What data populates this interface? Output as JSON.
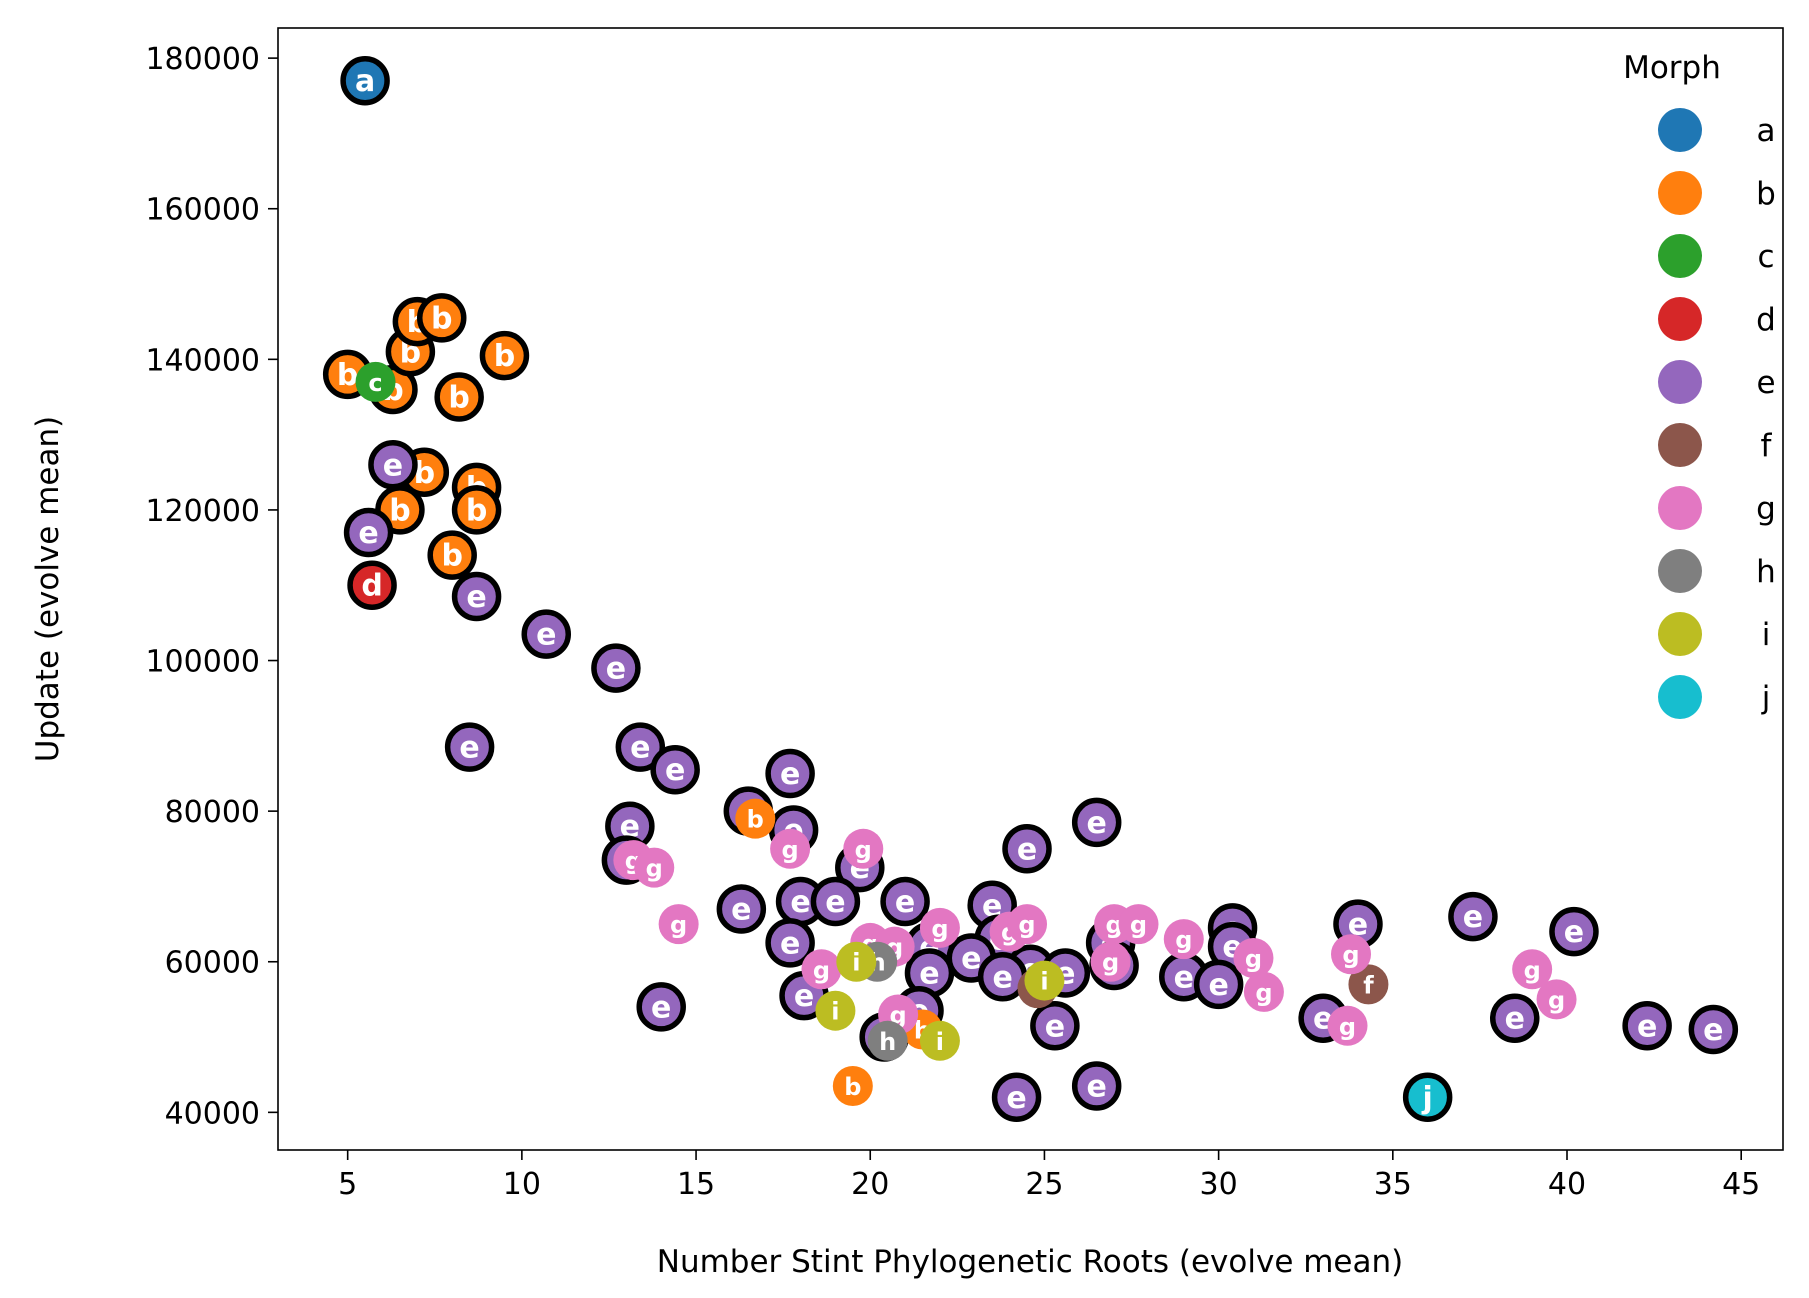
{
  "chart_data": {
    "type": "scatter",
    "title": "",
    "xlabel": "Number Stint Phylogenetic Roots (evolve mean)",
    "ylabel": "Update (evolve mean)",
    "xlim": [
      3,
      46.2
    ],
    "ylim": [
      35000,
      184000
    ],
    "xticks": [
      5,
      10,
      15,
      20,
      25,
      30,
      35,
      40,
      45
    ],
    "yticks": [
      40000,
      60000,
      80000,
      100000,
      120000,
      140000,
      160000,
      180000
    ],
    "grid": false,
    "legend": {
      "title": "Morph",
      "position": "top-right",
      "entries": [
        {
          "label": "a",
          "color": "#1f77b4"
        },
        {
          "label": "b",
          "color": "#ff7f0e"
        },
        {
          "label": "c",
          "color": "#2ca02c"
        },
        {
          "label": "d",
          "color": "#d62728"
        },
        {
          "label": "e",
          "color": "#9467bd"
        },
        {
          "label": "f",
          "color": "#8c564b"
        },
        {
          "label": "g",
          "color": "#e377c2"
        },
        {
          "label": "h",
          "color": "#7f7f7f"
        },
        {
          "label": "i",
          "color": "#bcbd22"
        },
        {
          "label": "j",
          "color": "#17becf"
        }
      ]
    },
    "series": [
      {
        "name": "a",
        "color": "#1f77b4",
        "points": [
          {
            "x": 5.5,
            "y": 177000,
            "o": true
          }
        ]
      },
      {
        "name": "b",
        "color": "#ff7f0e",
        "points": [
          {
            "x": 5.0,
            "y": 138000,
            "o": true
          },
          {
            "x": 6.3,
            "y": 136000,
            "o": true
          },
          {
            "x": 6.8,
            "y": 141000,
            "o": true
          },
          {
            "x": 7.0,
            "y": 145000,
            "o": true
          },
          {
            "x": 7.7,
            "y": 145500,
            "o": true
          },
          {
            "x": 9.5,
            "y": 140500,
            "o": true
          },
          {
            "x": 8.2,
            "y": 135000,
            "o": true
          },
          {
            "x": 7.2,
            "y": 125000,
            "o": true
          },
          {
            "x": 8.7,
            "y": 123000,
            "o": true
          },
          {
            "x": 8.7,
            "y": 120000,
            "o": true
          },
          {
            "x": 6.5,
            "y": 120000,
            "o": true
          },
          {
            "x": 8.0,
            "y": 114000,
            "o": true
          },
          {
            "x": 16.7,
            "y": 79000,
            "o": false
          },
          {
            "x": 19.5,
            "y": 43500,
            "o": false
          },
          {
            "x": 21.5,
            "y": 51000,
            "o": false
          }
        ]
      },
      {
        "name": "c",
        "color": "#2ca02c",
        "points": [
          {
            "x": 5.8,
            "y": 137000,
            "o": false
          }
        ]
      },
      {
        "name": "d",
        "color": "#d62728",
        "points": [
          {
            "x": 5.7,
            "y": 110000,
            "o": true
          }
        ]
      },
      {
        "name": "e",
        "color": "#9467bd",
        "points": [
          {
            "x": 6.3,
            "y": 126000,
            "o": true
          },
          {
            "x": 5.6,
            "y": 117000,
            "o": true
          },
          {
            "x": 8.7,
            "y": 108500,
            "o": true
          },
          {
            "x": 10.7,
            "y": 103500,
            "o": true
          },
          {
            "x": 12.7,
            "y": 99000,
            "o": true
          },
          {
            "x": 8.5,
            "y": 88500,
            "o": true
          },
          {
            "x": 13.4,
            "y": 88500,
            "o": true
          },
          {
            "x": 14.4,
            "y": 85500,
            "o": true
          },
          {
            "x": 17.7,
            "y": 85000,
            "o": true
          },
          {
            "x": 16.5,
            "y": 80000,
            "o": true
          },
          {
            "x": 13.1,
            "y": 78000,
            "o": true
          },
          {
            "x": 17.8,
            "y": 77500,
            "o": true
          },
          {
            "x": 13.0,
            "y": 73500,
            "o": true
          },
          {
            "x": 19.7,
            "y": 72500,
            "o": true
          },
          {
            "x": 16.3,
            "y": 67000,
            "o": true
          },
          {
            "x": 18.0,
            "y": 68000,
            "o": true
          },
          {
            "x": 19.0,
            "y": 68000,
            "o": true
          },
          {
            "x": 21.0,
            "y": 68000,
            "o": true
          },
          {
            "x": 23.5,
            "y": 67500,
            "o": true
          },
          {
            "x": 17.7,
            "y": 62500,
            "o": true
          },
          {
            "x": 21.7,
            "y": 62000,
            "o": true
          },
          {
            "x": 23.7,
            "y": 63000,
            "o": true
          },
          {
            "x": 22.9,
            "y": 60500,
            "o": true
          },
          {
            "x": 24.6,
            "y": 59000,
            "o": true
          },
          {
            "x": 21.7,
            "y": 58500,
            "o": true
          },
          {
            "x": 23.8,
            "y": 58000,
            "o": true
          },
          {
            "x": 25.6,
            "y": 58500,
            "o": true
          },
          {
            "x": 18.1,
            "y": 55500,
            "o": true
          },
          {
            "x": 14.0,
            "y": 54000,
            "o": true
          },
          {
            "x": 21.4,
            "y": 53500,
            "o": true
          },
          {
            "x": 20.4,
            "y": 50000,
            "o": true
          },
          {
            "x": 24.5,
            "y": 75000,
            "o": true
          },
          {
            "x": 26.5,
            "y": 78500,
            "o": true
          },
          {
            "x": 26.9,
            "y": 62500,
            "o": true
          },
          {
            "x": 27.0,
            "y": 59500,
            "o": true
          },
          {
            "x": 29.0,
            "y": 58000,
            "o": true
          },
          {
            "x": 30.4,
            "y": 64500,
            "o": true
          },
          {
            "x": 30.4,
            "y": 62000,
            "o": true
          },
          {
            "x": 30.0,
            "y": 57000,
            "o": true
          },
          {
            "x": 25.3,
            "y": 51500,
            "o": true
          },
          {
            "x": 24.2,
            "y": 42000,
            "o": true
          },
          {
            "x": 26.5,
            "y": 43500,
            "o": true
          },
          {
            "x": 33.0,
            "y": 52500,
            "o": true
          },
          {
            "x": 34.0,
            "y": 65000,
            "o": true
          },
          {
            "x": 37.3,
            "y": 66000,
            "o": true
          },
          {
            "x": 38.5,
            "y": 52500,
            "o": true
          },
          {
            "x": 40.2,
            "y": 64000,
            "o": true
          },
          {
            "x": 42.3,
            "y": 51500,
            "o": true
          },
          {
            "x": 44.2,
            "y": 51000,
            "o": true
          }
        ]
      },
      {
        "name": "f",
        "color": "#8c564b",
        "points": [
          {
            "x": 34.3,
            "y": 57000,
            "o": false
          },
          {
            "x": 24.8,
            "y": 56500,
            "o": false
          }
        ]
      },
      {
        "name": "g",
        "color": "#e377c2",
        "points": [
          {
            "x": 17.7,
            "y": 75000,
            "o": false
          },
          {
            "x": 19.8,
            "y": 75000,
            "o": false
          },
          {
            "x": 13.2,
            "y": 73500,
            "o": false
          },
          {
            "x": 13.8,
            "y": 72500,
            "o": false
          },
          {
            "x": 14.5,
            "y": 65000,
            "o": false
          },
          {
            "x": 22.0,
            "y": 64500,
            "o": false
          },
          {
            "x": 24.0,
            "y": 64000,
            "o": false
          },
          {
            "x": 24.5,
            "y": 65000,
            "o": false
          },
          {
            "x": 20.0,
            "y": 62500,
            "o": false
          },
          {
            "x": 20.7,
            "y": 62000,
            "o": false
          },
          {
            "x": 18.6,
            "y": 59000,
            "o": false
          },
          {
            "x": 20.8,
            "y": 53000,
            "o": false
          },
          {
            "x": 27.0,
            "y": 65000,
            "o": false
          },
          {
            "x": 27.7,
            "y": 65000,
            "o": false
          },
          {
            "x": 29.0,
            "y": 63000,
            "o": false
          },
          {
            "x": 26.9,
            "y": 60000,
            "o": false
          },
          {
            "x": 31.0,
            "y": 60500,
            "o": false
          },
          {
            "x": 31.3,
            "y": 56000,
            "o": false
          },
          {
            "x": 33.8,
            "y": 61000,
            "o": false
          },
          {
            "x": 33.7,
            "y": 51500,
            "o": false
          },
          {
            "x": 39.0,
            "y": 59000,
            "o": false
          },
          {
            "x": 39.7,
            "y": 55000,
            "o": false
          }
        ]
      },
      {
        "name": "h",
        "color": "#7f7f7f",
        "points": [
          {
            "x": 20.2,
            "y": 60000,
            "o": false
          },
          {
            "x": 20.5,
            "y": 49500,
            "o": false
          }
        ]
      },
      {
        "name": "i",
        "color": "#bcbd22",
        "points": [
          {
            "x": 19.6,
            "y": 60000,
            "o": false
          },
          {
            "x": 19.0,
            "y": 53500,
            "o": false
          },
          {
            "x": 22.0,
            "y": 49500,
            "o": false
          },
          {
            "x": 25.0,
            "y": 57500,
            "o": false
          }
        ]
      },
      {
        "name": "j",
        "color": "#17becf",
        "points": [
          {
            "x": 36.0,
            "y": 42000,
            "o": true
          }
        ]
      }
    ]
  }
}
